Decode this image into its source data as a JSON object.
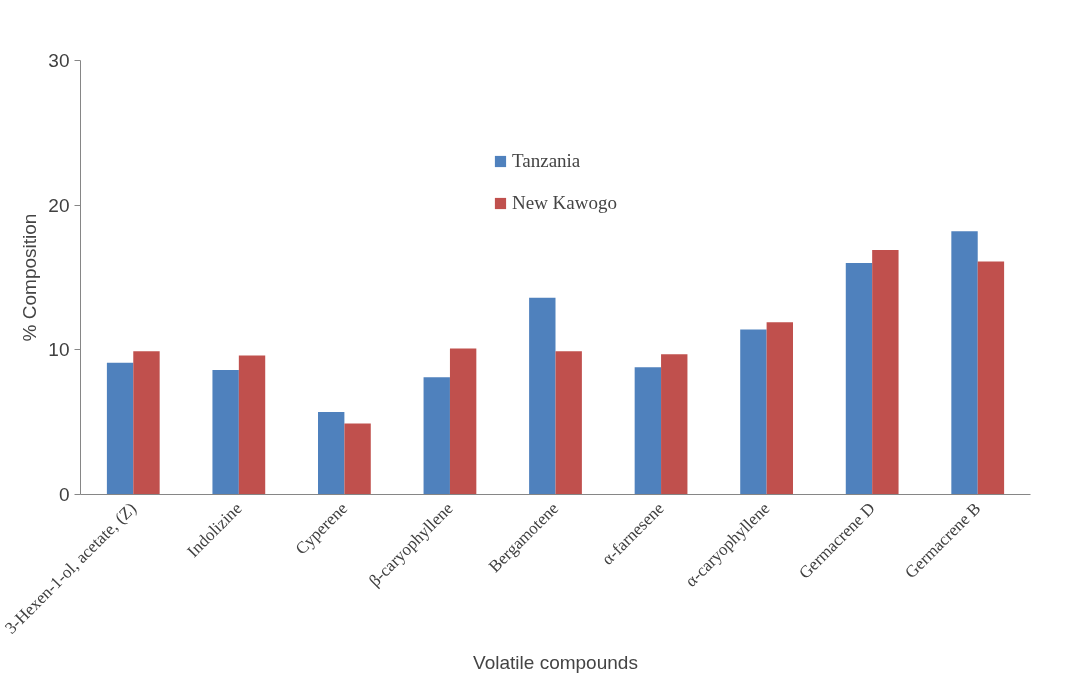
{
  "chart_data": {
    "type": "bar",
    "xlabel": "Volatile compounds",
    "ylabel": "% Composition",
    "categories": [
      "3-Hexen-1-ol, acetate, (Z)",
      "Indolizine",
      "Cyperene",
      "β-caryophyllene",
      "Bergamotene",
      "α-farnesene",
      "α-caryophyllene",
      "Germacrene D",
      "Germacrene B"
    ],
    "series": [
      {
        "name": "Tanzania",
        "color": "#4f81bd",
        "values": [
          9.1,
          8.6,
          5.7,
          8.1,
          13.6,
          8.8,
          11.4,
          16.0,
          18.2
        ]
      },
      {
        "name": "New Kawogo",
        "color": "#c0504d",
        "values": [
          9.9,
          9.6,
          4.9,
          10.1,
          9.9,
          9.7,
          11.9,
          16.9,
          16.1
        ]
      }
    ],
    "ylim": [
      0,
      30
    ],
    "yticks": [
      0,
      10,
      20,
      30
    ],
    "grid": false,
    "legend": "top"
  }
}
